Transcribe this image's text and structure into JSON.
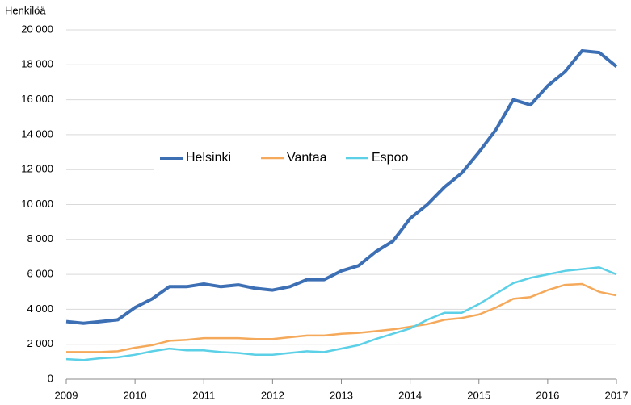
{
  "chart_data": {
    "type": "line",
    "y_label": "Henkilöä",
    "x": [
      2009,
      2009.25,
      2009.5,
      2009.75,
      2010,
      2010.25,
      2010.5,
      2010.75,
      2011,
      2011.25,
      2011.5,
      2011.75,
      2012,
      2012.25,
      2012.5,
      2012.75,
      2013,
      2013.25,
      2013.5,
      2013.75,
      2014,
      2014.25,
      2014.5,
      2014.75,
      2015,
      2015.25,
      2015.5,
      2015.75,
      2016,
      2016.25,
      2016.5,
      2016.75,
      2017
    ],
    "series": [
      {
        "name": "Helsinki",
        "color": "#3d6fb5",
        "values": [
          3300,
          3200,
          3300,
          3400,
          4100,
          4600,
          5300,
          5300,
          5450,
          5300,
          5400,
          5200,
          5100,
          5300,
          5700,
          5700,
          6200,
          6500,
          7300,
          7900,
          9200,
          10000,
          11000,
          11800,
          13000,
          14300,
          16000,
          15700,
          16800,
          17600,
          18800,
          18700,
          17900
        ]
      },
      {
        "name": "Vantaa",
        "color": "#f5a95a",
        "values": [
          1550,
          1550,
          1550,
          1600,
          1800,
          1950,
          2200,
          2250,
          2350,
          2350,
          2350,
          2300,
          2300,
          2400,
          2500,
          2500,
          2600,
          2650,
          2750,
          2850,
          3000,
          3150,
          3400,
          3500,
          3700,
          4100,
          4600,
          4700,
          5100,
          5400,
          5450,
          5000,
          4800
        ]
      },
      {
        "name": "Espoo",
        "color": "#5bd0e6",
        "values": [
          1150,
          1100,
          1200,
          1250,
          1400,
          1600,
          1750,
          1650,
          1650,
          1550,
          1500,
          1400,
          1400,
          1500,
          1600,
          1550,
          1750,
          1950,
          2300,
          2600,
          2900,
          3400,
          3800,
          3800,
          4300,
          4900,
          5500,
          5800,
          6000,
          6200,
          6300,
          6400,
          6000
        ]
      }
    ],
    "xlim": [
      2009,
      2017
    ],
    "xticks": [
      2009,
      2010,
      2011,
      2012,
      2013,
      2014,
      2015,
      2016,
      2017
    ],
    "ylim": [
      0,
      20000
    ],
    "yticks": [
      0,
      {
        "value": 2000,
        "label": "2 000"
      },
      {
        "value": 4000,
        "label": "4 000"
      },
      {
        "value": 6000,
        "label": "6 000"
      },
      {
        "value": 8000,
        "label": "8 000"
      },
      {
        "value": 10000,
        "label": "10 000"
      },
      {
        "value": 12000,
        "label": "12 000"
      },
      {
        "value": 14000,
        "label": "14 000"
      },
      {
        "value": 16000,
        "label": "16 000"
      },
      {
        "value": 18000,
        "label": "18 000"
      },
      {
        "value": 20000,
        "label": "20 000"
      }
    ],
    "grid": true,
    "legend": "center"
  }
}
